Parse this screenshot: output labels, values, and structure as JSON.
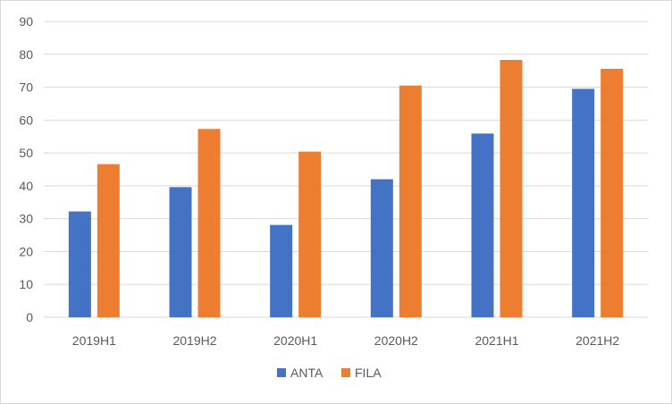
{
  "chart_data": {
    "type": "bar",
    "title": "",
    "xlabel": "",
    "ylabel": "",
    "categories": [
      "2019H1",
      "2019H2",
      "2020H1",
      "2020H2",
      "2021H1",
      "2021H2"
    ],
    "series": [
      {
        "name": "ANTA",
        "color": "#4472c4",
        "values": [
          32.2,
          39.6,
          28.1,
          42.0,
          55.9,
          69.5
        ]
      },
      {
        "name": "FILA",
        "color": "#ed7d31",
        "values": [
          46.6,
          57.3,
          50.4,
          70.5,
          78.3,
          75.6
        ]
      }
    ],
    "ylim": [
      0,
      90
    ],
    "yticks": [
      0,
      10,
      20,
      30,
      40,
      50,
      60,
      70,
      80,
      90
    ],
    "grid": true,
    "legend": "bottom-center"
  }
}
